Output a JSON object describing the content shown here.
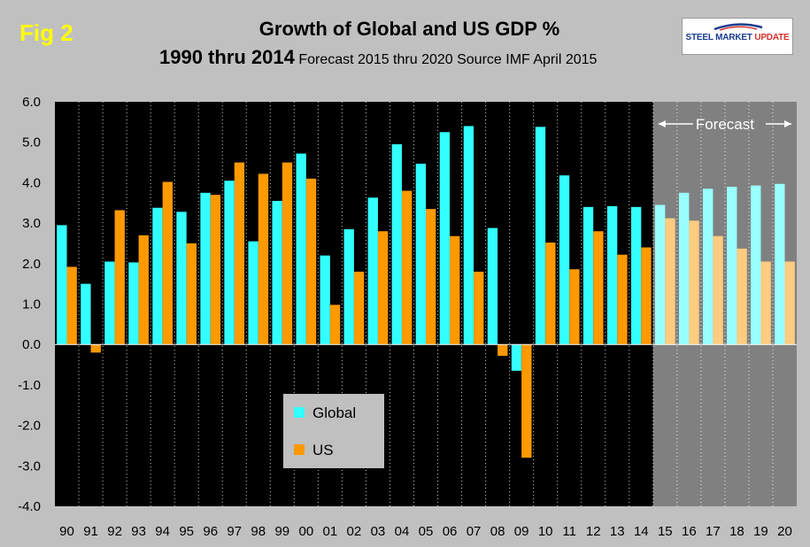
{
  "figure_label": "Fig 2",
  "title_line1": "Growth of Global and US GDP %",
  "title_line2_main": "1990 thru 2014",
  "title_line2_sub": "Forecast 2015 thru 2020  Source IMF April 2015",
  "logo": {
    "brand": "STEEL MARKET",
    "brand_accent": "UPDATE"
  },
  "colors": {
    "global": "#33ffff",
    "us": "#ff9900",
    "global_forecast": "#99ffff",
    "us_forecast": "#ffcc80",
    "plot_bg": "#000000",
    "forecast_bg": "#808080",
    "page_bg": "#c0c0c0",
    "title_accent": "#ffff00"
  },
  "chart_data": {
    "type": "bar",
    "title": "Growth of Global and US GDP %",
    "subtitle": "1990 thru 2014 Forecast 2015 thru 2020 Source IMF April 2015",
    "categories": [
      "90",
      "91",
      "92",
      "93",
      "94",
      "95",
      "96",
      "97",
      "98",
      "99",
      "00",
      "01",
      "02",
      "03",
      "04",
      "05",
      "06",
      "07",
      "08",
      "09",
      "10",
      "11",
      "12",
      "13",
      "14",
      "15",
      "16",
      "17",
      "18",
      "19",
      "20"
    ],
    "series": [
      {
        "name": "Global",
        "values": [
          2.95,
          1.5,
          2.05,
          2.03,
          3.38,
          3.28,
          3.75,
          4.05,
          2.55,
          3.55,
          4.72,
          2.2,
          2.85,
          3.63,
          4.95,
          4.47,
          5.25,
          5.4,
          2.88,
          -0.65,
          5.38,
          4.18,
          3.4,
          3.42,
          3.4,
          3.45,
          3.75,
          3.85,
          3.9,
          3.93,
          3.97
        ]
      },
      {
        "name": "US",
        "values": [
          1.92,
          -0.2,
          3.32,
          2.7,
          4.02,
          2.5,
          3.7,
          4.5,
          4.22,
          4.5,
          4.1,
          0.98,
          1.8,
          2.8,
          3.8,
          3.35,
          2.68,
          1.8,
          -0.28,
          -2.8,
          2.52,
          1.86,
          2.8,
          2.22,
          2.4,
          3.12,
          3.06,
          2.68,
          2.37,
          2.05,
          2.05
        ]
      }
    ],
    "ylim": [
      -4.0,
      6.0
    ],
    "yticks": [
      "6.0",
      "5.0",
      "4.0",
      "3.0",
      "2.0",
      "1.0",
      "0.0",
      "-1.0",
      "-2.0",
      "-3.0",
      "-4.0"
    ],
    "forecast_categories": [
      "15",
      "16",
      "17",
      "18",
      "19",
      "20"
    ],
    "forecast_label": "Forecast",
    "legend": [
      "Global",
      "US"
    ],
    "legend_placement": "lower-left",
    "grid": "vertical dotted"
  }
}
